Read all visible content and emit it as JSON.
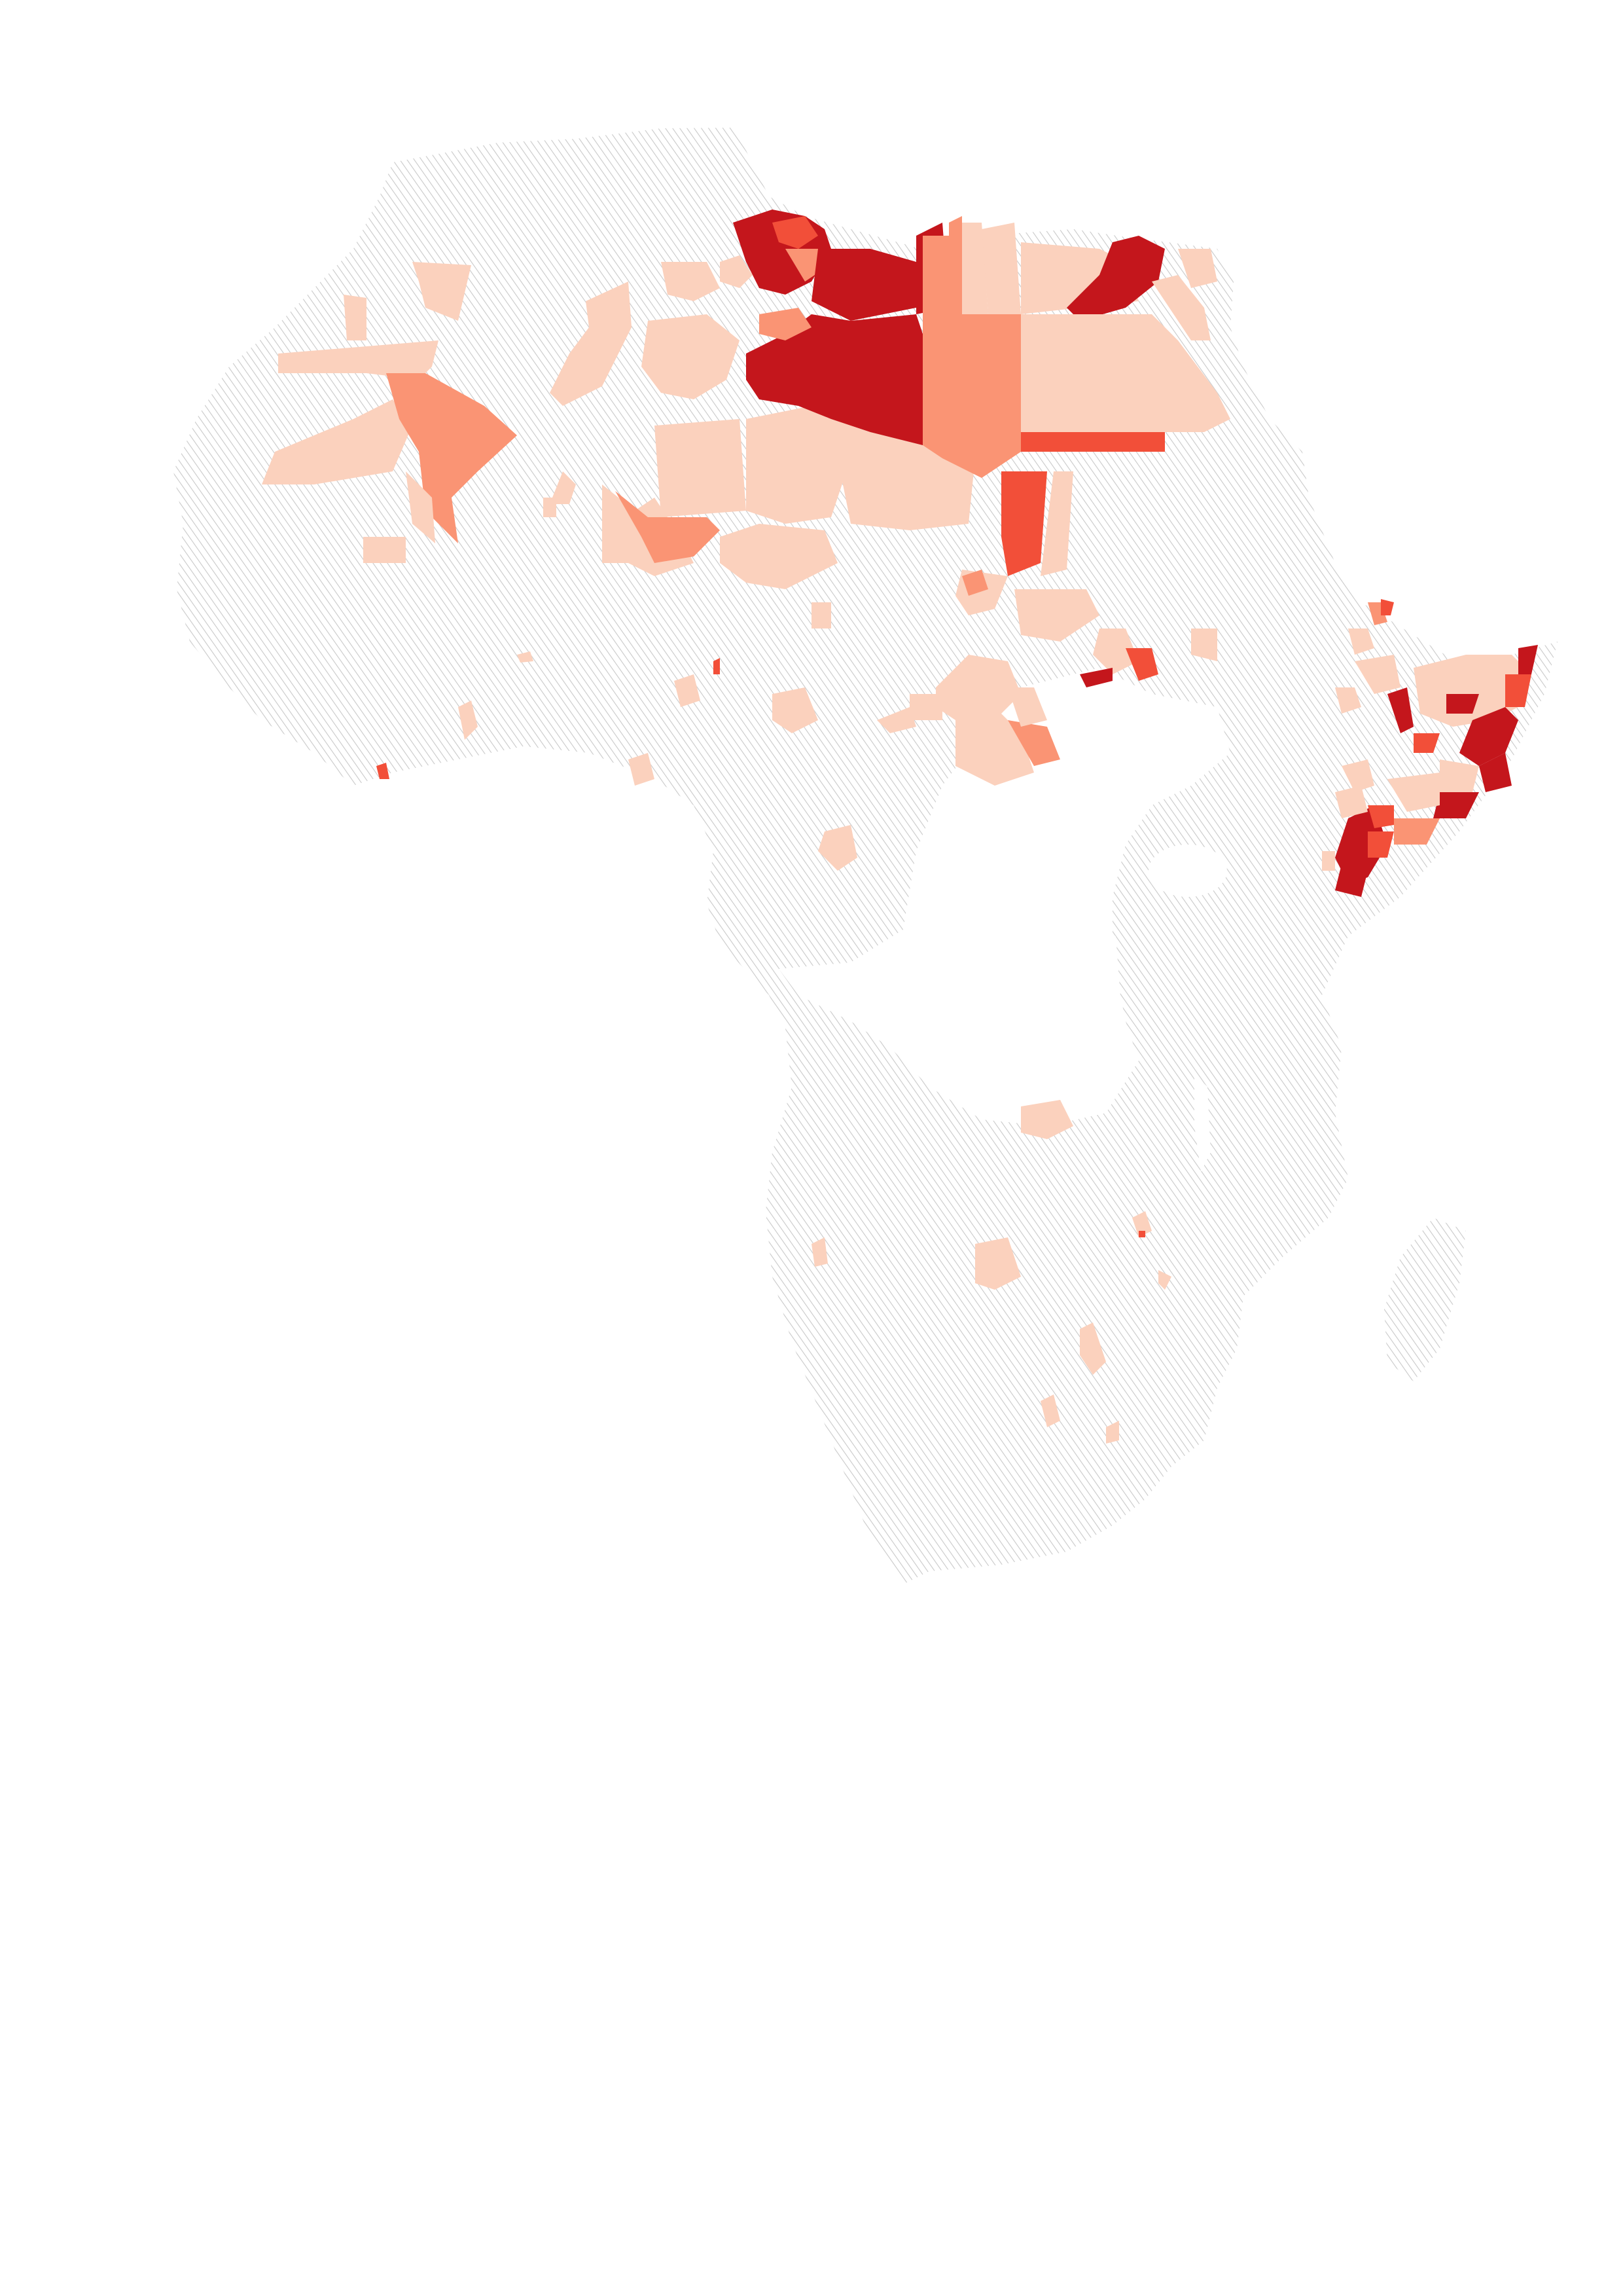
{
  "map": {
    "type": "choropleth",
    "region": "Africa",
    "classes": [
      {
        "level": 0,
        "color": "#fbd1bd"
      },
      {
        "level": 1,
        "color": "#fa9474"
      },
      {
        "level": 2,
        "color": "#f24f39"
      },
      {
        "level": 3,
        "color": "#c4161c"
      }
    ],
    "no_data_style": "diagonal gray hatching",
    "no_data_color": "#c9c9c9",
    "lakes_color": "#ffffff",
    "legend": "none",
    "title": ""
  }
}
